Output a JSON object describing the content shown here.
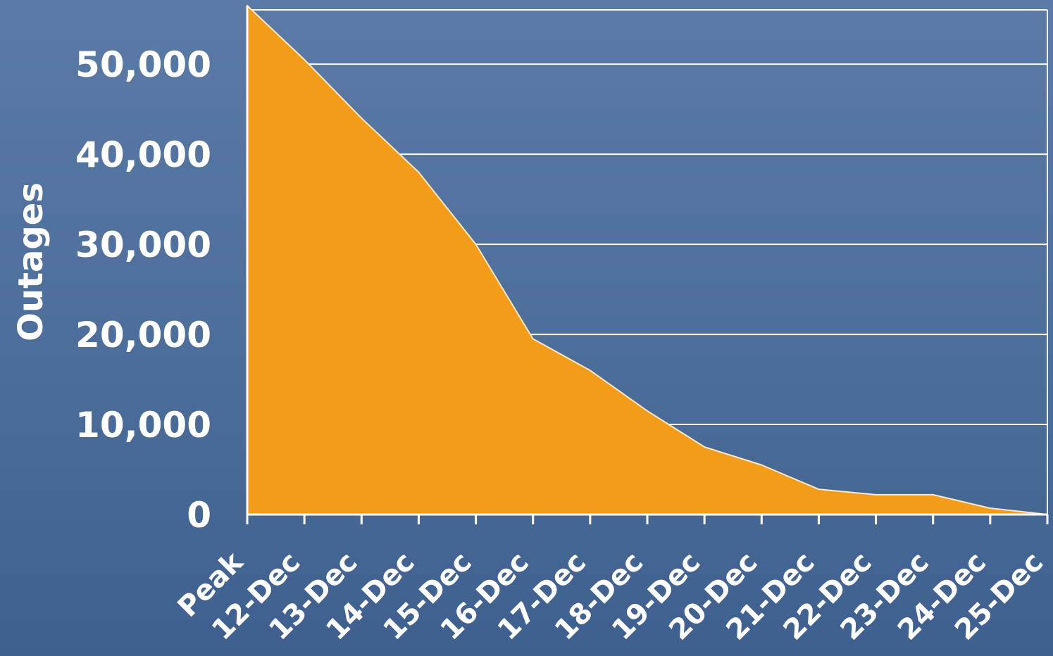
{
  "chart_data": {
    "type": "area",
    "title": "",
    "xlabel": "",
    "ylabel": "Outages",
    "categories": [
      "Peak",
      "12-Dec",
      "13-Dec",
      "14-Dec",
      "15-Dec",
      "16-Dec",
      "17-Dec",
      "18-Dec",
      "19-Dec",
      "20-Dec",
      "21-Dec",
      "22-Dec",
      "23-Dec",
      "24-Dec",
      "25-Dec"
    ],
    "values": [
      56500,
      50500,
      44000,
      38000,
      30000,
      19500,
      16000,
      11500,
      7500,
      5500,
      2800,
      2200,
      2200,
      700,
      0
    ],
    "ylim": [
      0,
      56500
    ],
    "yticks": [
      0,
      10000,
      20000,
      30000,
      40000,
      50000
    ],
    "ytick_labels": [
      "0",
      "10,000",
      "20,000",
      "30,000",
      "40,000",
      "50,000"
    ],
    "grid": true,
    "colors": {
      "fill": "#f39c1a",
      "background": "#4f6f9c",
      "grid": "#ffffff",
      "text": "#ffffff"
    }
  }
}
